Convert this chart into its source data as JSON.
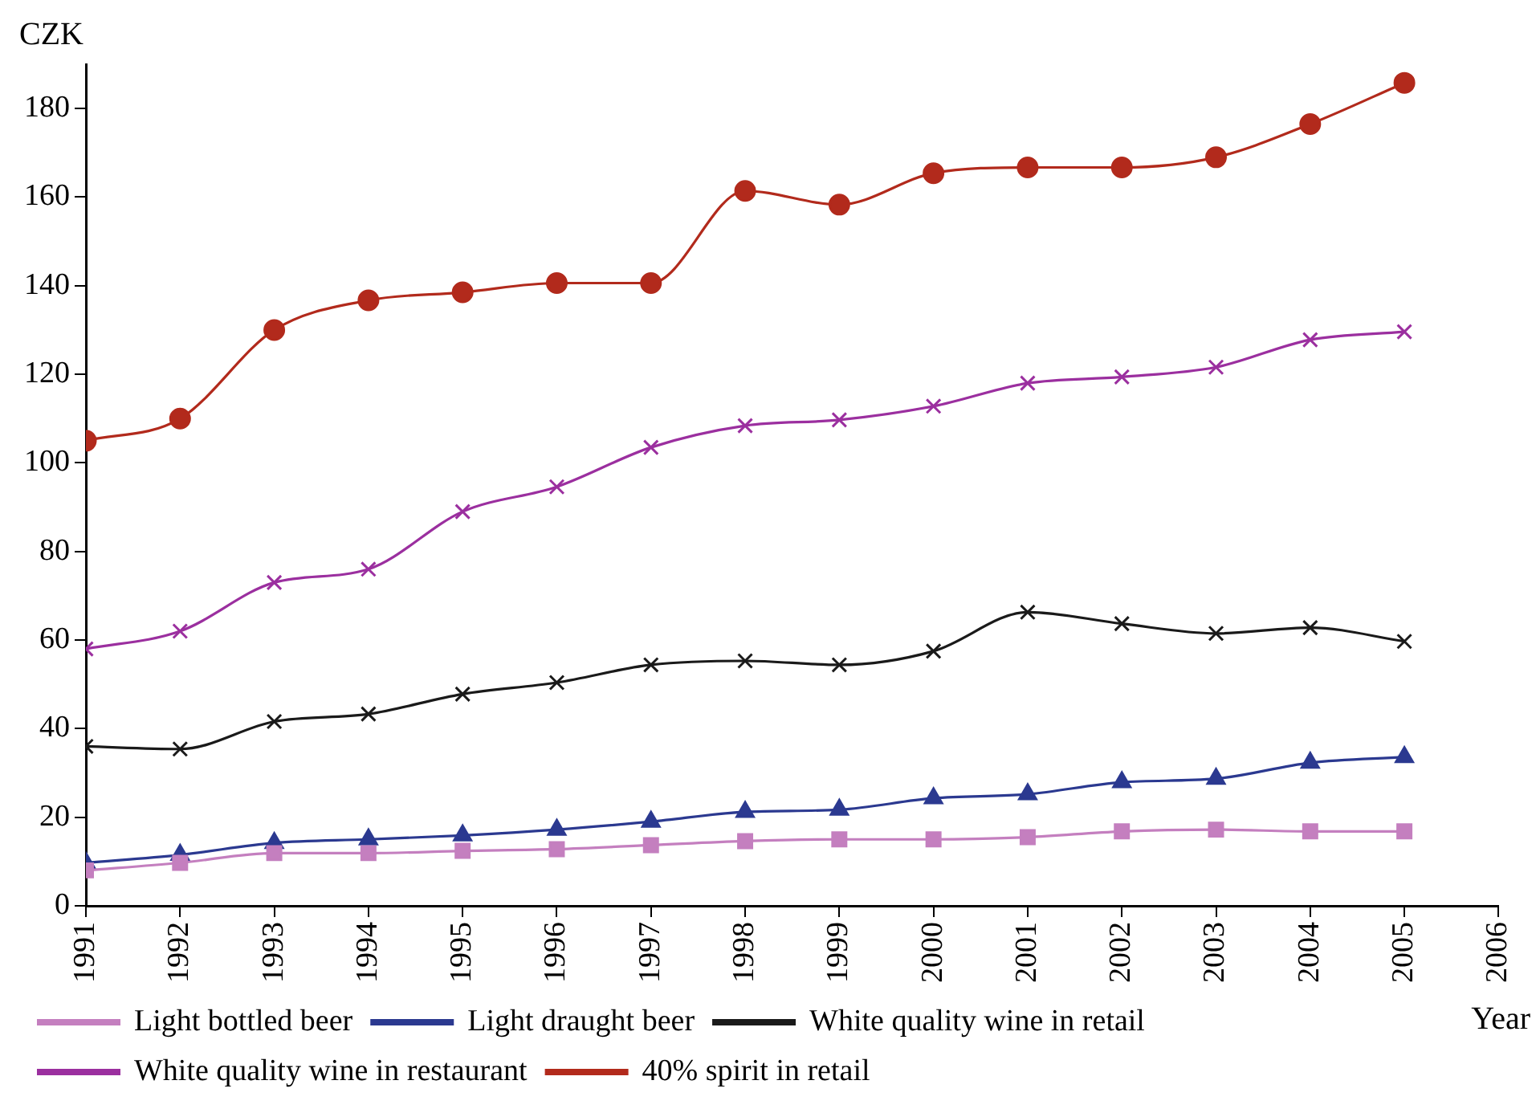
{
  "chart_data": {
    "type": "line",
    "xlabel": "Year",
    "ylabel": "CZK",
    "x": [
      1991,
      1992,
      1993,
      1994,
      1995,
      1996,
      1997,
      1998,
      1999,
      2000,
      2001,
      2002,
      2003,
      2004,
      2005
    ],
    "xlim": [
      1991,
      2006
    ],
    "xticks": [
      1991,
      1992,
      1993,
      1994,
      1995,
      1996,
      1997,
      1998,
      1999,
      2000,
      2001,
      2002,
      2003,
      2004,
      2005,
      2006
    ],
    "ylim": [
      0,
      190
    ],
    "yticks": [
      0,
      20,
      40,
      60,
      80,
      100,
      120,
      140,
      160,
      180
    ],
    "grid": false,
    "legend": "bottom",
    "line_style": "solid",
    "series": [
      {
        "name": "Light bottled beer",
        "color": "#c47fbf",
        "marker": "square",
        "values": [
          8,
          9.7,
          11.9,
          11.9,
          12.4,
          12.8,
          13.7,
          14.6,
          15,
          15,
          15.5,
          16.8,
          17.2,
          16.8,
          16.8
        ]
      },
      {
        "name": "Light draught beer",
        "color": "#2b3990",
        "marker": "triangle",
        "values": [
          9.7,
          11.5,
          14.2,
          15,
          15.9,
          17.2,
          19,
          21.2,
          21.7,
          24.3,
          25.2,
          27.9,
          28.7,
          32.3,
          33.6
        ]
      },
      {
        "name": "White quality wine in retail",
        "color": "#1a1a1a",
        "marker": "cross",
        "values": [
          36,
          35.4,
          41.6,
          43.3,
          47.8,
          50.4,
          54.4,
          55.3,
          54.4,
          57.5,
          66.3,
          63.7,
          61.5,
          62.8,
          59.7
        ]
      },
      {
        "name": "White quality wine in restaurant",
        "color": "#9b2f9f",
        "marker": "cross",
        "values": [
          58,
          62,
          73,
          76,
          89,
          94.6,
          103.5,
          108.4,
          109.7,
          112.8,
          118,
          119.4,
          121.6,
          127.8,
          129.6
        ]
      },
      {
        "name": "40% spirit in retail",
        "color": "#b22a1c",
        "marker": "circle",
        "values": [
          105,
          110,
          130,
          136.7,
          138.5,
          140.6,
          140.6,
          161.4,
          158.3,
          165.4,
          166.7,
          166.7,
          169,
          176.5,
          185.8
        ]
      }
    ]
  }
}
